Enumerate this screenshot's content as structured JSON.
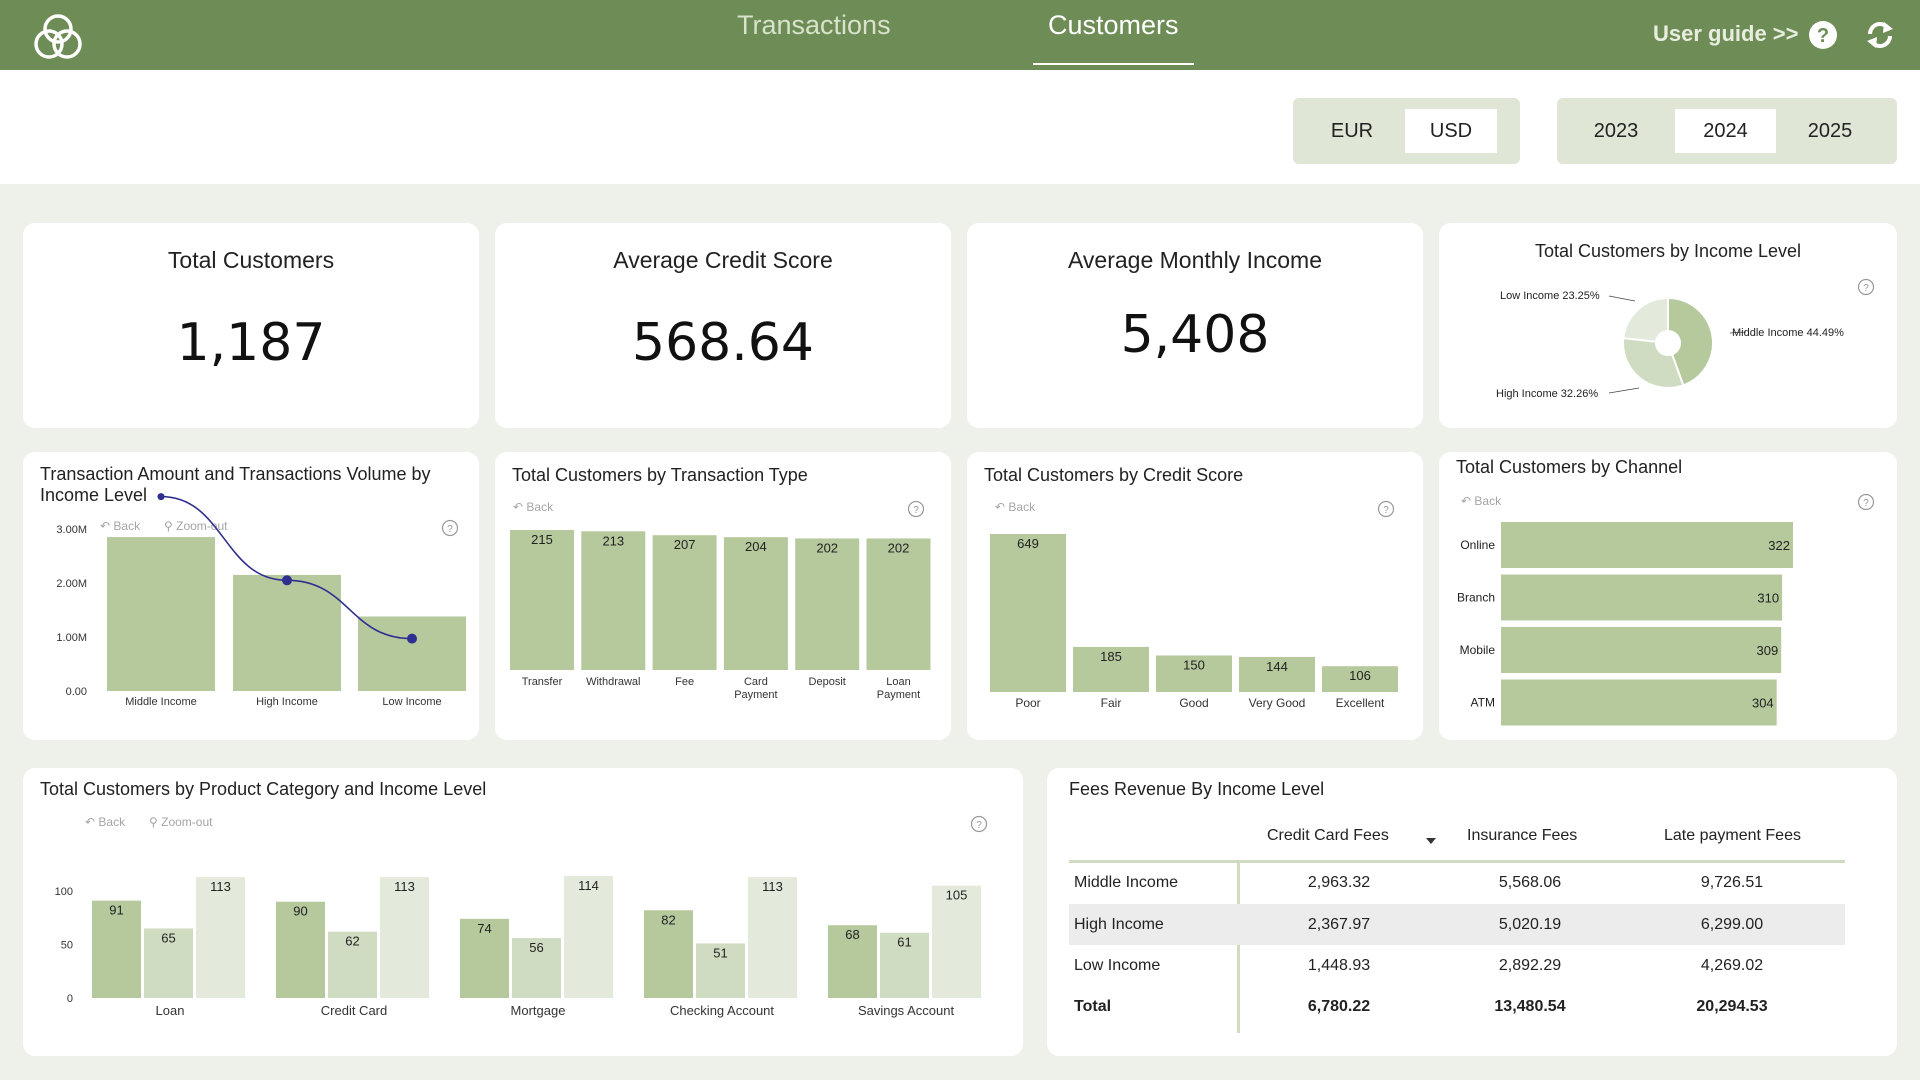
{
  "nav": {
    "tabs": [
      {
        "label": "Transactions"
      },
      {
        "label": "Customers"
      }
    ],
    "user_guide": "User guide >>",
    "icons": {
      "logo": "trefoil-logo-icon",
      "help": "help-icon",
      "refresh": "refresh-icon"
    }
  },
  "filters": {
    "currency": {
      "options": [
        "EUR",
        "USD"
      ],
      "selected": "USD"
    },
    "year": {
      "options": [
        "2023",
        "2024",
        "2025"
      ],
      "selected": "2024"
    }
  },
  "kpis": [
    {
      "title": "Total Customers",
      "value": "1,187"
    },
    {
      "title": "Average Credit Score",
      "value": "568.64"
    },
    {
      "title": "Average Monthly Income",
      "value": "5,408"
    }
  ],
  "tools": {
    "back": "Back",
    "zoom_out": "Zoom-out"
  },
  "colors": {
    "header": "#6e8c55",
    "bar": "#b5c99d",
    "bar_mid": "#d0dcc2",
    "bar_light": "#e3eadb",
    "line": "#2f2f8f"
  },
  "chart_data": [
    {
      "id": "income_pie",
      "type": "pie",
      "title": "Total Customers by Income Level",
      "labels": [
        "Middle Income",
        "High Income",
        "Low Income"
      ],
      "values": [
        44.49,
        32.26,
        23.25
      ],
      "slice_labels": [
        "Middle Income 44.49%",
        "High Income 32.26%",
        "Low Income 23.25%"
      ]
    },
    {
      "id": "amount_volume",
      "type": "bar",
      "title": "Transaction Amount and Transactions Volume by Income Level",
      "categories": [
        "Middle Income",
        "High Income",
        "Low Income"
      ],
      "series": [
        {
          "values": [
            2.85,
            2.15,
            1.38
          ]
        },
        {
          "values": [
            3.6,
            2.05,
            0.97
          ]
        }
      ],
      "yticks": [
        "3.00M",
        "2.00M",
        "1.00M",
        "0.00"
      ],
      "ylim": [
        0,
        3.5
      ]
    },
    {
      "id": "transaction_type",
      "type": "bar",
      "title": "Total Customers by Transaction Type",
      "categories": [
        "Transfer",
        "Withdrawal",
        "Fee",
        "Card Payment",
        "Deposit",
        "Loan Payment"
      ],
      "values": [
        215,
        213,
        207,
        204,
        202,
        202
      ]
    },
    {
      "id": "credit_score",
      "type": "bar",
      "title": "Total Customers by Credit Score",
      "categories": [
        "Poor",
        "Fair",
        "Good",
        "Very Good",
        "Excellent"
      ],
      "values": [
        649,
        185,
        150,
        144,
        106
      ]
    },
    {
      "id": "channel",
      "type": "bar",
      "title": "Total Customers by Channel",
      "categories": [
        "Online",
        "Branch",
        "Mobile",
        "ATM"
      ],
      "values": [
        322,
        310,
        309,
        304
      ]
    },
    {
      "id": "product_income",
      "type": "bar",
      "title": "Total Customers by Product Category and Income Level",
      "categories": [
        "Loan",
        "Credit Card",
        "Mortgage",
        "Checking Account",
        "Savings Account"
      ],
      "series": [
        {
          "values": [
            91,
            90,
            74,
            82,
            68
          ]
        },
        {
          "values": [
            65,
            62,
            56,
            51,
            61
          ]
        },
        {
          "values": [
            113,
            113,
            114,
            113,
            105
          ]
        }
      ],
      "yticks": [
        "100",
        "50",
        "0"
      ],
      "ylim": [
        0,
        125
      ]
    }
  ],
  "fees_table": {
    "title": "Fees Revenue By Income Level",
    "columns": [
      "Credit Card Fees",
      "Insurance Fees",
      "Late payment Fees"
    ],
    "rows": [
      {
        "label": "Middle Income",
        "values": [
          "2,963.32",
          "5,568.06",
          "9,726.51"
        ]
      },
      {
        "label": "High Income",
        "values": [
          "2,367.97",
          "5,020.19",
          "6,299.00"
        ]
      },
      {
        "label": "Low Income",
        "values": [
          "1,448.93",
          "2,892.29",
          "4,269.02"
        ]
      }
    ],
    "total": {
      "label": "Total",
      "values": [
        "6,780.22",
        "13,480.54",
        "20,294.53"
      ]
    }
  }
}
